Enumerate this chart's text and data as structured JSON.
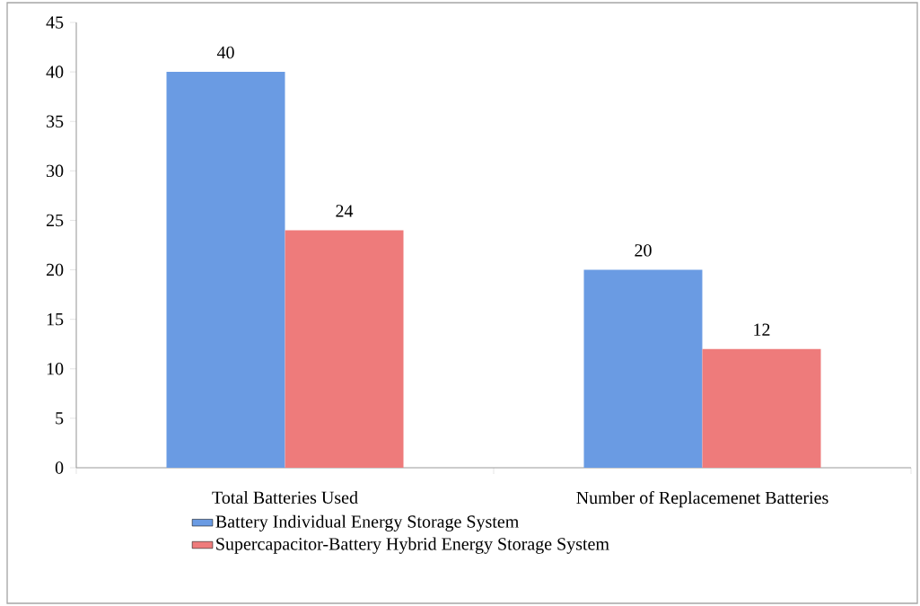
{
  "chart_data": {
    "type": "bar",
    "categories": [
      "Total Batteries Used",
      "Number of Replacemenet Batteries"
    ],
    "series": [
      {
        "name": "Battery Individual Energy Storage System",
        "color": "#6a9be3",
        "values": [
          40,
          20
        ]
      },
      {
        "name": "Supercapacitor-Battery Hybrid Energy Storage System",
        "color": "#ee7b7b",
        "values": [
          24,
          12
        ]
      }
    ],
    "ylim": [
      0,
      45
    ],
    "yticks": [
      0,
      5,
      10,
      15,
      20,
      25,
      30,
      35,
      40,
      45
    ],
    "grid": false,
    "legend": "bottom",
    "data_labels": true
  }
}
